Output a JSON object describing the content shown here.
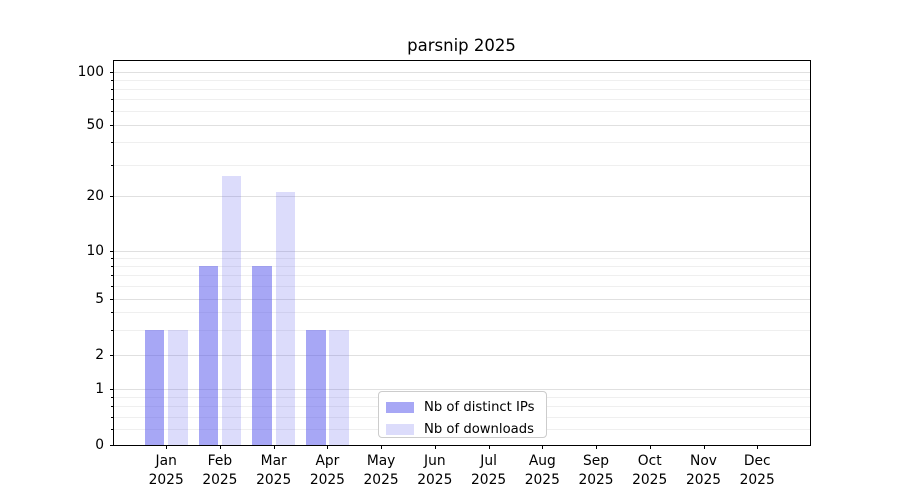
{
  "chart_data": {
    "type": "bar",
    "title": "parsnip 2025",
    "yscale": "symlog",
    "ylim": [
      0,
      117
    ],
    "grid": true,
    "legend_position": "lower-center",
    "y_major_ticks": [
      {
        "value": 100,
        "label": "100"
      },
      {
        "value": 50,
        "label": "50"
      },
      {
        "value": 20,
        "label": "20"
      },
      {
        "value": 10,
        "label": "10"
      },
      {
        "value": 5,
        "label": "5"
      },
      {
        "value": 2,
        "label": "2"
      },
      {
        "value": 1,
        "label": "1"
      },
      {
        "value": 0,
        "label": "0"
      }
    ],
    "y_minor_ticks": [
      0.6,
      0.7,
      0.8,
      0.9,
      3,
      4,
      6,
      7,
      8,
      9,
      30,
      40,
      60,
      70,
      80,
      90
    ],
    "categories": [
      "Jan\n2025",
      "Feb\n2025",
      "Mar\n2025",
      "Apr\n2025",
      "May\n2025",
      "Jun\n2025",
      "Jul\n2025",
      "Aug\n2025",
      "Sep\n2025",
      "Oct\n2025",
      "Nov\n2025",
      "Dec\n2025"
    ],
    "series": [
      {
        "key": "distinct-ips",
        "name": "Nb of distinct IPs",
        "color": "rgba(80,80,235,0.5)",
        "values": [
          3,
          8,
          8,
          3,
          0,
          0,
          0,
          0,
          0,
          0,
          0,
          0
        ]
      },
      {
        "key": "downloads",
        "name": "Nb of downloads",
        "color": "rgba(80,80,235,0.2)",
        "values": [
          3,
          26,
          21,
          3,
          0,
          0,
          0,
          0,
          0,
          0,
          0,
          0
        ]
      }
    ]
  },
  "colors": {
    "grid_major": "#e0e0e0",
    "grid_minor": "#efefef",
    "spine": "#000000",
    "text": "#000000",
    "legend_border": "#cccccc",
    "background": "#ffffff"
  }
}
